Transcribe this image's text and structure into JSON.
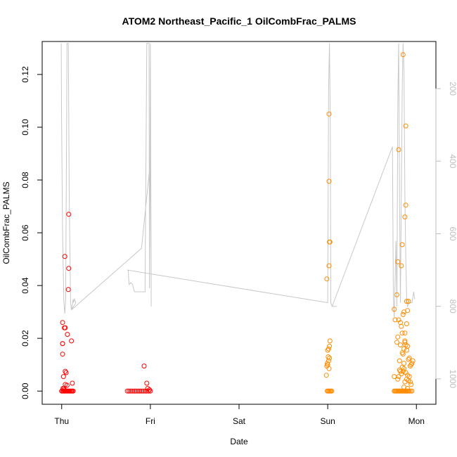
{
  "chart_data": {
    "type": "scatter",
    "title": "ATOM2 Northeast_Pacific_1 OilCombFrac_PALMS",
    "xlabel": "Date",
    "ylabel": "OilCombFrac_PALMS",
    "x_ticks": [
      "Thu",
      "Fri",
      "Sat",
      "Sun",
      "Mon"
    ],
    "x_tick_days": [
      0,
      1,
      2,
      3,
      4
    ],
    "xlim_days": [
      -0.22,
      4.22
    ],
    "ylim": [
      -0.005,
      0.1325
    ],
    "y_ticks": [
      0.0,
      0.02,
      0.04,
      0.06,
      0.08,
      0.1,
      0.12
    ],
    "y_tick_labels": [
      "0.00",
      "0.02",
      "0.04",
      "0.06",
      "0.08",
      "0.10",
      "0.12"
    ],
    "right_axis": {
      "ticks": [
        200,
        400,
        600,
        800,
        1000
      ],
      "reversed": true,
      "lim": [
        1070,
        70
      ],
      "color": "#bebebe"
    },
    "series": [
      {
        "color": "#ff0000",
        "points": [
          [
            0.01,
            0.026
          ],
          [
            0.01,
            0.018
          ],
          [
            0.01,
            0.014
          ],
          [
            0.01,
            0.018
          ],
          [
            0.02,
            0.0055
          ],
          [
            0.035,
            0.051
          ],
          [
            0.03,
            0.024
          ],
          [
            0.04,
            0.024
          ],
          [
            0.04,
            0.0075
          ],
          [
            0.05,
            0.007
          ],
          [
            0.06,
            0.0022
          ],
          [
            0.065,
            0.0215
          ],
          [
            0.08,
            0.067
          ],
          [
            0.08,
            0.0465
          ],
          [
            0.075,
            0.0385
          ],
          [
            0.11,
            0.019
          ],
          [
            0.12,
            0.003
          ],
          [
            0.04,
            0.0025
          ],
          [
            0.03,
            0.0005
          ],
          [
            0.0,
            0.0
          ],
          [
            0.01,
            0.0
          ],
          [
            0.02,
            0.0
          ],
          [
            0.03,
            0.0
          ],
          [
            0.04,
            0.0
          ],
          [
            0.05,
            0.0
          ],
          [
            0.06,
            0.0
          ],
          [
            0.07,
            0.0
          ],
          [
            0.08,
            0.0
          ],
          [
            0.09,
            0.0
          ],
          [
            0.1,
            0.0
          ],
          [
            0.11,
            0.0
          ],
          [
            0.12,
            0.0
          ],
          [
            0.13,
            0.0
          ],
          [
            0.015,
            0.001
          ],
          [
            0.025,
            0.001
          ],
          [
            0.74,
            0.0
          ],
          [
            0.76,
            0.0
          ],
          [
            0.78,
            0.0
          ],
          [
            0.8,
            0.0
          ],
          [
            0.82,
            0.0
          ],
          [
            0.84,
            0.0
          ],
          [
            0.86,
            0.0
          ],
          [
            0.88,
            0.0
          ],
          [
            0.9,
            0.0
          ],
          [
            0.92,
            0.0
          ],
          [
            0.94,
            0.0
          ],
          [
            0.96,
            0.0
          ],
          [
            0.98,
            0.0
          ],
          [
            1.0,
            0.0
          ],
          [
            0.93,
            0.0095
          ],
          [
            0.96,
            0.003
          ],
          [
            0.97,
            0.001
          ],
          [
            0.99,
            0.0005
          ]
        ]
      },
      {
        "color": "#ff8c00",
        "points": [
          [
            2.995,
            0.0
          ],
          [
            3.005,
            0.0
          ],
          [
            3.015,
            0.0
          ],
          [
            3.025,
            0.0
          ],
          [
            3.035,
            0.0
          ],
          [
            3.045,
            0.0
          ],
          [
            2.985,
            0.006
          ],
          [
            2.99,
            0.0095
          ],
          [
            2.995,
            0.0105
          ],
          [
            3.0,
            0.01
          ],
          [
            3.005,
            0.013
          ],
          [
            3.01,
            0.0115
          ],
          [
            3.02,
            0.0125
          ],
          [
            3.0,
            0.0155
          ],
          [
            3.01,
            0.016
          ],
          [
            3.015,
            0.0085
          ],
          [
            2.99,
            0.0425
          ],
          [
            3.02,
            0.017
          ],
          [
            3.025,
            0.019
          ],
          [
            3.015,
            0.0475
          ],
          [
            3.025,
            0.0565
          ],
          [
            3.02,
            0.0565
          ],
          [
            3.015,
            0.0795
          ],
          [
            3.015,
            0.105
          ],
          [
            3.75,
            0.0
          ],
          [
            3.76,
            0.0
          ],
          [
            3.77,
            0.0
          ],
          [
            3.78,
            0.0
          ],
          [
            3.79,
            0.0
          ],
          [
            3.8,
            0.0
          ],
          [
            3.81,
            0.0
          ],
          [
            3.82,
            0.0
          ],
          [
            3.83,
            0.0
          ],
          [
            3.84,
            0.0
          ],
          [
            3.85,
            0.0
          ],
          [
            3.86,
            0.0
          ],
          [
            3.87,
            0.0
          ],
          [
            3.88,
            0.0
          ],
          [
            3.89,
            0.0
          ],
          [
            3.9,
            0.0
          ],
          [
            3.91,
            0.0
          ],
          [
            3.92,
            0.0
          ],
          [
            3.935,
            0.0
          ],
          [
            3.95,
            0.0
          ],
          [
            3.75,
            0.0055
          ],
          [
            3.75,
            0.031
          ],
          [
            3.76,
            0.027
          ],
          [
            3.78,
            0.0365
          ],
          [
            3.78,
            0.0185
          ],
          [
            3.79,
            0.0205
          ],
          [
            3.8,
            0.027
          ],
          [
            3.81,
            0.0115
          ],
          [
            3.82,
            0.026
          ],
          [
            3.83,
            0.0245
          ],
          [
            3.84,
            0.022
          ],
          [
            3.85,
            0.029
          ],
          [
            3.86,
            0.03
          ],
          [
            3.87,
            0.022
          ],
          [
            3.88,
            0.0175
          ],
          [
            3.89,
            0.0255
          ],
          [
            3.9,
            0.0305
          ],
          [
            3.91,
            0.012
          ],
          [
            3.92,
            0.0125
          ],
          [
            3.93,
            0.0095
          ],
          [
            3.94,
            0.01
          ],
          [
            3.95,
            0.0105
          ],
          [
            3.96,
            0.0115
          ],
          [
            3.79,
            0.0045
          ],
          [
            3.8,
            0.0055
          ],
          [
            3.81,
            0.008
          ],
          [
            3.82,
            0.0075
          ],
          [
            3.83,
            0.0065
          ],
          [
            3.84,
            0.009
          ],
          [
            3.85,
            0.0075
          ],
          [
            3.86,
            0.0085
          ],
          [
            3.87,
            0.0035
          ],
          [
            3.88,
            0.007
          ],
          [
            3.89,
            0.0045
          ],
          [
            3.9,
            0.006
          ],
          [
            3.91,
            0.004
          ],
          [
            3.92,
            0.0055
          ],
          [
            3.93,
            0.0035
          ],
          [
            3.94,
            0.0025
          ],
          [
            3.86,
            0.0015
          ],
          [
            3.9,
            0.001
          ],
          [
            3.8,
            0.0915
          ],
          [
            3.79,
            0.049
          ],
          [
            3.84,
            0.0555
          ],
          [
            3.83,
            0.0475
          ],
          [
            3.85,
            0.1275
          ],
          [
            3.88,
            0.1005
          ],
          [
            3.87,
            0.066
          ],
          [
            3.88,
            0.0705
          ],
          [
            3.89,
            0.034
          ],
          [
            3.91,
            0.034
          ],
          [
            3.86,
            0.016
          ],
          [
            3.87,
            0.019
          ],
          [
            3.9,
            0.017
          ],
          [
            3.85,
            0.014
          ],
          [
            3.82,
            0.0175
          ],
          [
            3.84,
            0.0145
          ],
          [
            3.86,
            0.0105
          ],
          [
            3.87,
            0.0185
          ],
          [
            3.89,
            0.0155
          ]
        ]
      }
    ],
    "depth_trace": {
      "color": "#c8c8c8",
      "points": [
        [
          -0.005,
          75
        ],
        [
          -0.002,
          260
        ],
        [
          0.01,
          600
        ],
        [
          0.025,
          790
        ],
        [
          0.035,
          820
        ],
        [
          0.045,
          780
        ],
        [
          0.055,
          330
        ],
        [
          0.06,
          75
        ],
        [
          0.075,
          75
        ],
        [
          0.085,
          500
        ],
        [
          0.1,
          790
        ],
        [
          0.11,
          810
        ],
        [
          0.12,
          795
        ],
        [
          0.13,
          780
        ],
        [
          0.135,
          790
        ],
        [
          0.145,
          780
        ],
        [
          0.16,
          790
        ],
        [
          0.11,
          810
        ],
        [
          0.9,
          640
        ],
        [
          1.0,
          400
        ],
        [
          1.01,
          800
        ],
        [
          1.0,
          75
        ],
        [
          0.99,
          750
        ],
        [
          0.985,
          75
        ],
        [
          0.96,
          75
        ],
        [
          0.95,
          400
        ],
        [
          0.94,
          760
        ],
        [
          0.9,
          760
        ],
        [
          0.86,
          760
        ],
        [
          0.82,
          760
        ],
        [
          0.8,
          740
        ],
        [
          0.78,
          735
        ],
        [
          0.76,
          740
        ],
        [
          0.75,
          700
        ],
        [
          0.74,
          700
        ],
        [
          3.0,
          790
        ],
        [
          3.01,
          200
        ],
        [
          3.02,
          75
        ],
        [
          3.03,
          320
        ],
        [
          3.035,
          790
        ],
        [
          3.05,
          800
        ],
        [
          3.1,
          800
        ],
        [
          3.05,
          800
        ],
        [
          3.73,
          360
        ],
        [
          3.74,
          780
        ],
        [
          3.75,
          830
        ],
        [
          3.77,
          620
        ],
        [
          3.78,
          800
        ],
        [
          3.79,
          240
        ],
        [
          3.8,
          75
        ],
        [
          3.81,
          500
        ],
        [
          3.82,
          790
        ],
        [
          3.84,
          200
        ],
        [
          3.85,
          75
        ],
        [
          3.86,
          150
        ],
        [
          3.87,
          500
        ],
        [
          3.88,
          660
        ],
        [
          3.89,
          780
        ],
        [
          3.9,
          800
        ],
        [
          3.92,
          790
        ],
        [
          3.95,
          790
        ],
        [
          3.97,
          760
        ],
        [
          3.98,
          780
        ]
      ]
    }
  }
}
